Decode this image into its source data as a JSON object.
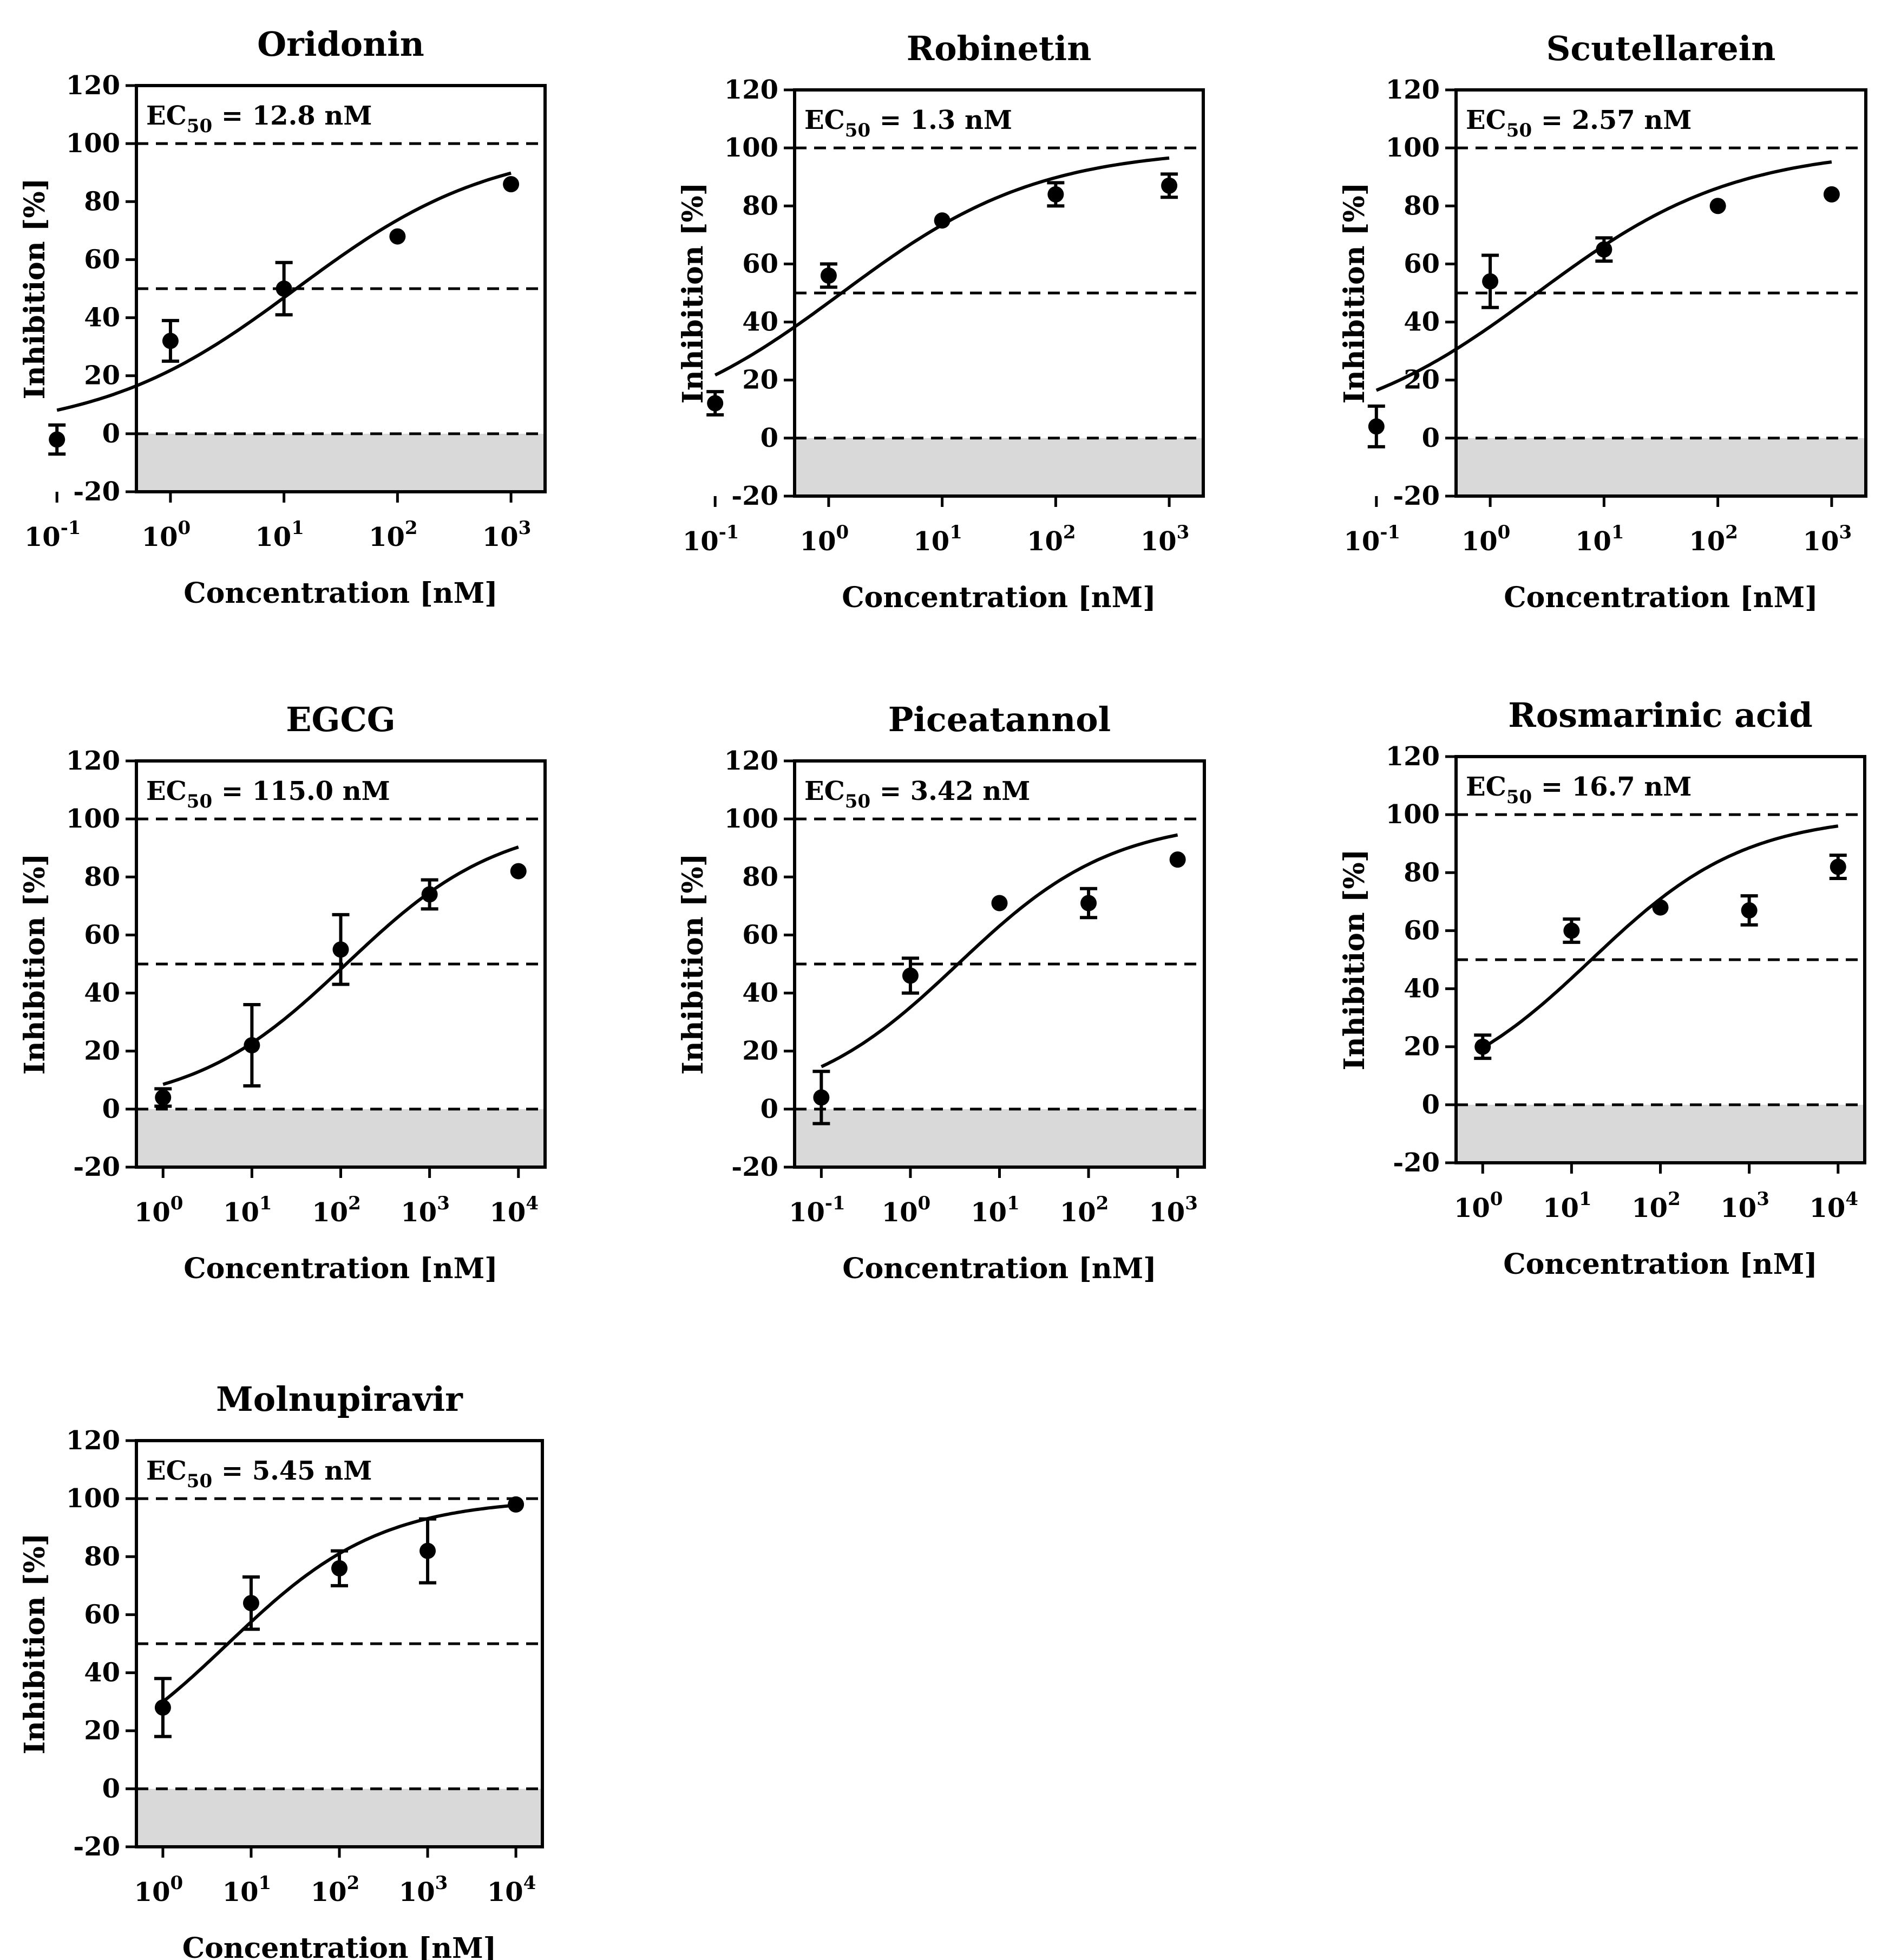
{
  "figure": {
    "y_axis_label": "Inhibition [%]",
    "x_axis_label": "Concentration [nM]",
    "ec_prefix": "EC",
    "ec_subscript": "50",
    "ec_equals": " = ",
    "ec_unit": " nM",
    "colors": {
      "axis": "#000000",
      "negative_region": "#d9d9d9",
      "background": "#ffffff"
    }
  },
  "chart_data": [
    {
      "type": "scatter",
      "title": "Oridonin",
      "ec50": "12.8",
      "xlabel": "Concentration [nM]",
      "ylabel": "Inhibition [%]",
      "xscale": "log",
      "xlim_log10": [
        -0.3,
        3.3
      ],
      "ylim": [
        -20,
        120
      ],
      "yticks": [
        -20,
        0,
        20,
        40,
        60,
        80,
        100,
        120
      ],
      "xtick_exponents": [
        -1,
        0,
        1,
        2,
        3
      ],
      "reference_lines": [
        0,
        50,
        100
      ],
      "points": [
        {
          "x": 0.1,
          "y": -2,
          "err": 5
        },
        {
          "x": 1,
          "y": 32,
          "err": 7
        },
        {
          "x": 10,
          "y": 50,
          "err": 9
        },
        {
          "x": 100,
          "y": 68,
          "err": 0
        },
        {
          "x": 1000,
          "y": 86,
          "err": 0
        }
      ],
      "fit": {
        "x_range": [
          0.1,
          1000
        ],
        "hill": 0.5,
        "top": 100,
        "bottom": 0
      }
    },
    {
      "type": "scatter",
      "title": "Robinetin",
      "ec50": "1.3",
      "xlabel": "Concentration [nM]",
      "ylabel": "Inhibition [%]",
      "xscale": "log",
      "xlim_log10": [
        -0.3,
        3.3
      ],
      "ylim": [
        -20,
        120
      ],
      "yticks": [
        -20,
        0,
        20,
        40,
        60,
        80,
        100,
        120
      ],
      "xtick_exponents": [
        -1,
        0,
        1,
        2,
        3
      ],
      "reference_lines": [
        0,
        50,
        100
      ],
      "points": [
        {
          "x": 0.1,
          "y": 12,
          "err": 4
        },
        {
          "x": 1,
          "y": 56,
          "err": 4
        },
        {
          "x": 10,
          "y": 75,
          "err": 0
        },
        {
          "x": 100,
          "y": 84,
          "err": 4
        },
        {
          "x": 1000,
          "y": 87,
          "err": 4
        }
      ],
      "fit": {
        "x_range": [
          0.1,
          1000
        ],
        "hill": 0.5,
        "top": 100,
        "bottom": 0
      }
    },
    {
      "type": "scatter",
      "title": "Scutellarein",
      "ec50": "2.57",
      "xlabel": "Concentration [nM]",
      "ylabel": "Inhibition [%]",
      "xscale": "log",
      "xlim_log10": [
        -0.3,
        3.3
      ],
      "ylim": [
        -20,
        120
      ],
      "yticks": [
        -20,
        0,
        20,
        40,
        60,
        80,
        100,
        120
      ],
      "xtick_exponents": [
        -1,
        0,
        1,
        2,
        3
      ],
      "reference_lines": [
        0,
        50,
        100
      ],
      "points": [
        {
          "x": 0.1,
          "y": 4,
          "err": 7
        },
        {
          "x": 1,
          "y": 54,
          "err": 9
        },
        {
          "x": 10,
          "y": 65,
          "err": 4
        },
        {
          "x": 100,
          "y": 80,
          "err": 0
        },
        {
          "x": 1000,
          "y": 84,
          "err": 0
        }
      ],
      "fit": {
        "x_range": [
          0.1,
          1000
        ],
        "hill": 0.5,
        "top": 100,
        "bottom": 0
      }
    },
    {
      "type": "scatter",
      "title": "EGCG",
      "ec50": "115.0",
      "xlabel": "Concentration [nM]",
      "ylabel": "Inhibition [%]",
      "xscale": "log",
      "xlim_log10": [
        -0.3,
        4.3
      ],
      "ylim": [
        -20,
        120
      ],
      "yticks": [
        -20,
        0,
        20,
        40,
        60,
        80,
        100,
        120
      ],
      "xtick_exponents": [
        0,
        1,
        2,
        3,
        4
      ],
      "reference_lines": [
        0,
        50,
        100
      ],
      "points": [
        {
          "x": 1,
          "y": 4,
          "err": 3
        },
        {
          "x": 10,
          "y": 22,
          "err": 14
        },
        {
          "x": 100,
          "y": 55,
          "err": 12
        },
        {
          "x": 1000,
          "y": 74,
          "err": 5
        },
        {
          "x": 10000,
          "y": 82,
          "err": 0
        }
      ],
      "fit": {
        "x_range": [
          1,
          10000
        ],
        "hill": 0.5,
        "top": 100,
        "bottom": 0
      }
    },
    {
      "type": "scatter",
      "title": "Piceatannol",
      "ec50": "3.42",
      "xlabel": "Concentration [nM]",
      "ylabel": "Inhibition [%]",
      "xscale": "log",
      "xlim_log10": [
        -1.3,
        3.3
      ],
      "ylim": [
        -20,
        120
      ],
      "yticks": [
        -20,
        0,
        20,
        40,
        60,
        80,
        100,
        120
      ],
      "xtick_exponents": [
        -1,
        0,
        1,
        2,
        3
      ],
      "reference_lines": [
        0,
        50,
        100
      ],
      "points": [
        {
          "x": 0.1,
          "y": 4,
          "err": 9
        },
        {
          "x": 1,
          "y": 46,
          "err": 6
        },
        {
          "x": 10,
          "y": 71,
          "err": 0
        },
        {
          "x": 100,
          "y": 71,
          "err": 5
        },
        {
          "x": 1000,
          "y": 86,
          "err": 0
        }
      ],
      "fit": {
        "x_range": [
          0.1,
          1000
        ],
        "hill": 0.5,
        "top": 100,
        "bottom": 0
      }
    },
    {
      "type": "scatter",
      "title": "Rosmarinic acid",
      "ec50": "16.7",
      "xlabel": "Concentration [nM]",
      "ylabel": "Inhibition [%]",
      "xscale": "log",
      "xlim_log10": [
        -0.3,
        4.3
      ],
      "ylim": [
        -20,
        120
      ],
      "yticks": [
        -20,
        0,
        20,
        40,
        60,
        80,
        100,
        120
      ],
      "xtick_exponents": [
        0,
        1,
        2,
        3,
        4
      ],
      "reference_lines": [
        0,
        50,
        100
      ],
      "points": [
        {
          "x": 1,
          "y": 20,
          "err": 4
        },
        {
          "x": 10,
          "y": 60,
          "err": 4
        },
        {
          "x": 100,
          "y": 68,
          "err": 0
        },
        {
          "x": 1000,
          "y": 67,
          "err": 5
        },
        {
          "x": 10000,
          "y": 82,
          "err": 4
        }
      ],
      "fit": {
        "x_range": [
          1,
          10000
        ],
        "hill": 0.5,
        "top": 100,
        "bottom": 0
      }
    },
    {
      "type": "scatter",
      "title": "Molnupiravir",
      "ec50": "5.45",
      "xlabel": "Concentration [nM]",
      "ylabel": "Inhibition [%]",
      "xscale": "log",
      "xlim_log10": [
        -0.3,
        4.3
      ],
      "ylim": [
        -20,
        120
      ],
      "yticks": [
        -20,
        0,
        20,
        40,
        60,
        80,
        100,
        120
      ],
      "xtick_exponents": [
        0,
        1,
        2,
        3,
        4
      ],
      "reference_lines": [
        0,
        50,
        100
      ],
      "points": [
        {
          "x": 1,
          "y": 28,
          "err": 10
        },
        {
          "x": 10,
          "y": 64,
          "err": 9
        },
        {
          "x": 100,
          "y": 76,
          "err": 6
        },
        {
          "x": 1000,
          "y": 82,
          "err": 11
        },
        {
          "x": 10000,
          "y": 98,
          "err": 0
        }
      ],
      "fit": {
        "x_range": [
          1,
          10000
        ],
        "hill": 0.5,
        "top": 100,
        "bottom": 0
      }
    }
  ]
}
